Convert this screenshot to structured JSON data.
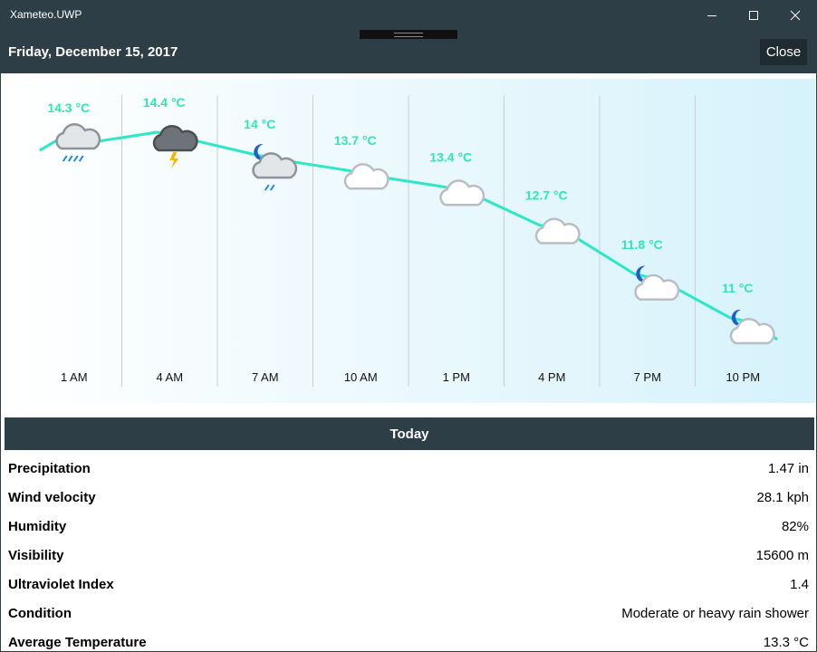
{
  "window": {
    "title": "Xameteo.UWP"
  },
  "header": {
    "date": "Friday, December 15, 2017",
    "close_label": "Close"
  },
  "chart_data": {
    "type": "line",
    "x": [
      "1 AM",
      "4 AM",
      "7 AM",
      "10 AM",
      "1 PM",
      "4 PM",
      "7 PM",
      "10 PM"
    ],
    "series": [
      {
        "values": [
          14.3,
          14.4,
          14,
          13.7,
          13.4,
          12.7,
          11.8,
          11
        ]
      }
    ],
    "value_labels": [
      "14.3 °C",
      "14.4 °C",
      "14 °C",
      "13.7 °C",
      "13.4 °C",
      "12.7 °C",
      "11.8 °C",
      "11 °C"
    ],
    "icons": [
      "cloud-rain-icon",
      "cloud-storm-icon",
      "moon-cloud-rain-icon",
      "cloud-icon",
      "cloud-icon",
      "cloud-icon",
      "moon-cloud-icon",
      "moon-cloud-icon"
    ],
    "line_color": "#2de8c8",
    "label_color": "#2de8b4"
  },
  "section": {
    "title": "Today"
  },
  "stats": [
    {
      "label": "Precipitation",
      "value": "1.47 in"
    },
    {
      "label": "Wind velocity",
      "value": "28.1 kph"
    },
    {
      "label": "Humidity",
      "value": "82%"
    },
    {
      "label": "Visibility",
      "value": "15600 m"
    },
    {
      "label": "Ultraviolet Index",
      "value": "1.4"
    },
    {
      "label": "Condition",
      "value": "Moderate or heavy rain shower"
    },
    {
      "label": "Average Temperature",
      "value": "13.3 °C"
    }
  ]
}
